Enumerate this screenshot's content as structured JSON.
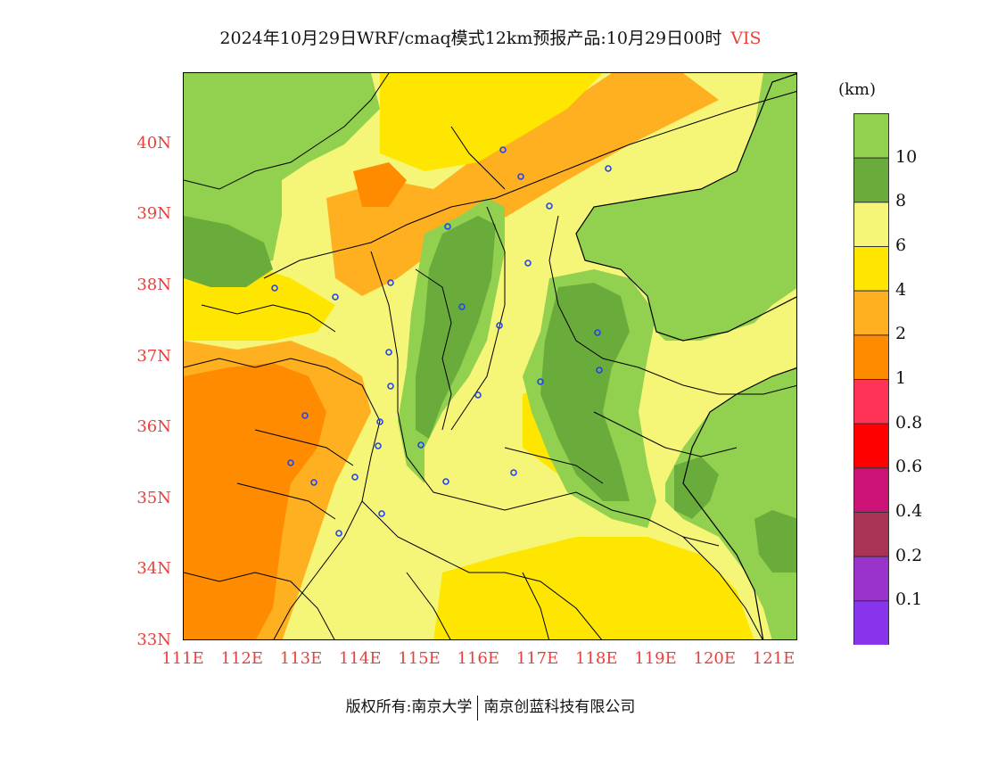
{
  "title": {
    "main": "2024年10月29日WRF/cmaq模式12km预报产品:10月29日00时",
    "variable": "VIS"
  },
  "axes": {
    "lat_labels": [
      "40N",
      "39N",
      "38N",
      "37N",
      "36N",
      "35N",
      "34N",
      "33N"
    ],
    "lon_labels": [
      "111E",
      "112E",
      "113E",
      "114E",
      "115E",
      "116E",
      "117E",
      "118E",
      "119E",
      "120E",
      "121E"
    ]
  },
  "legend": {
    "unit": "(km)",
    "labels": [
      "10",
      "8",
      "6",
      "4",
      "2",
      "1",
      "0.8",
      "0.6",
      "0.4",
      "0.2",
      "0.1"
    ],
    "colors": [
      "#92d050",
      "#6aac3c",
      "#f5f578",
      "#ffe600",
      "#ffb020",
      "#ff8c00",
      "#ff3355",
      "#ff0000",
      "#cc1177",
      "#aa3355",
      "#9933cc",
      "#8833ee"
    ],
    "color_meaning": [
      "visibility > 10",
      "8-10",
      "6-8",
      "4-6",
      "2-4",
      "1-2",
      "0.8-1",
      "0.6-0.8",
      "0.4-0.6",
      "0.2-0.4",
      "0.1-0.2",
      "< 0.1"
    ]
  },
  "map": {
    "extent": {
      "lon_min": 111,
      "lon_max": 121.4,
      "lat_min": 33,
      "lat_max": 41
    },
    "fill_colors": {
      "good": "#92d050",
      "good_dark": "#6aac3c",
      "light_yellow": "#f5f578",
      "yellow": "#ffe600",
      "orange_light": "#ffb020",
      "orange": "#ff8c00"
    },
    "city_marker_color": "#2244ee"
  },
  "copyright": {
    "left": "版权所有:南京大学",
    "right": "南京创蓝科技有限公司"
  }
}
